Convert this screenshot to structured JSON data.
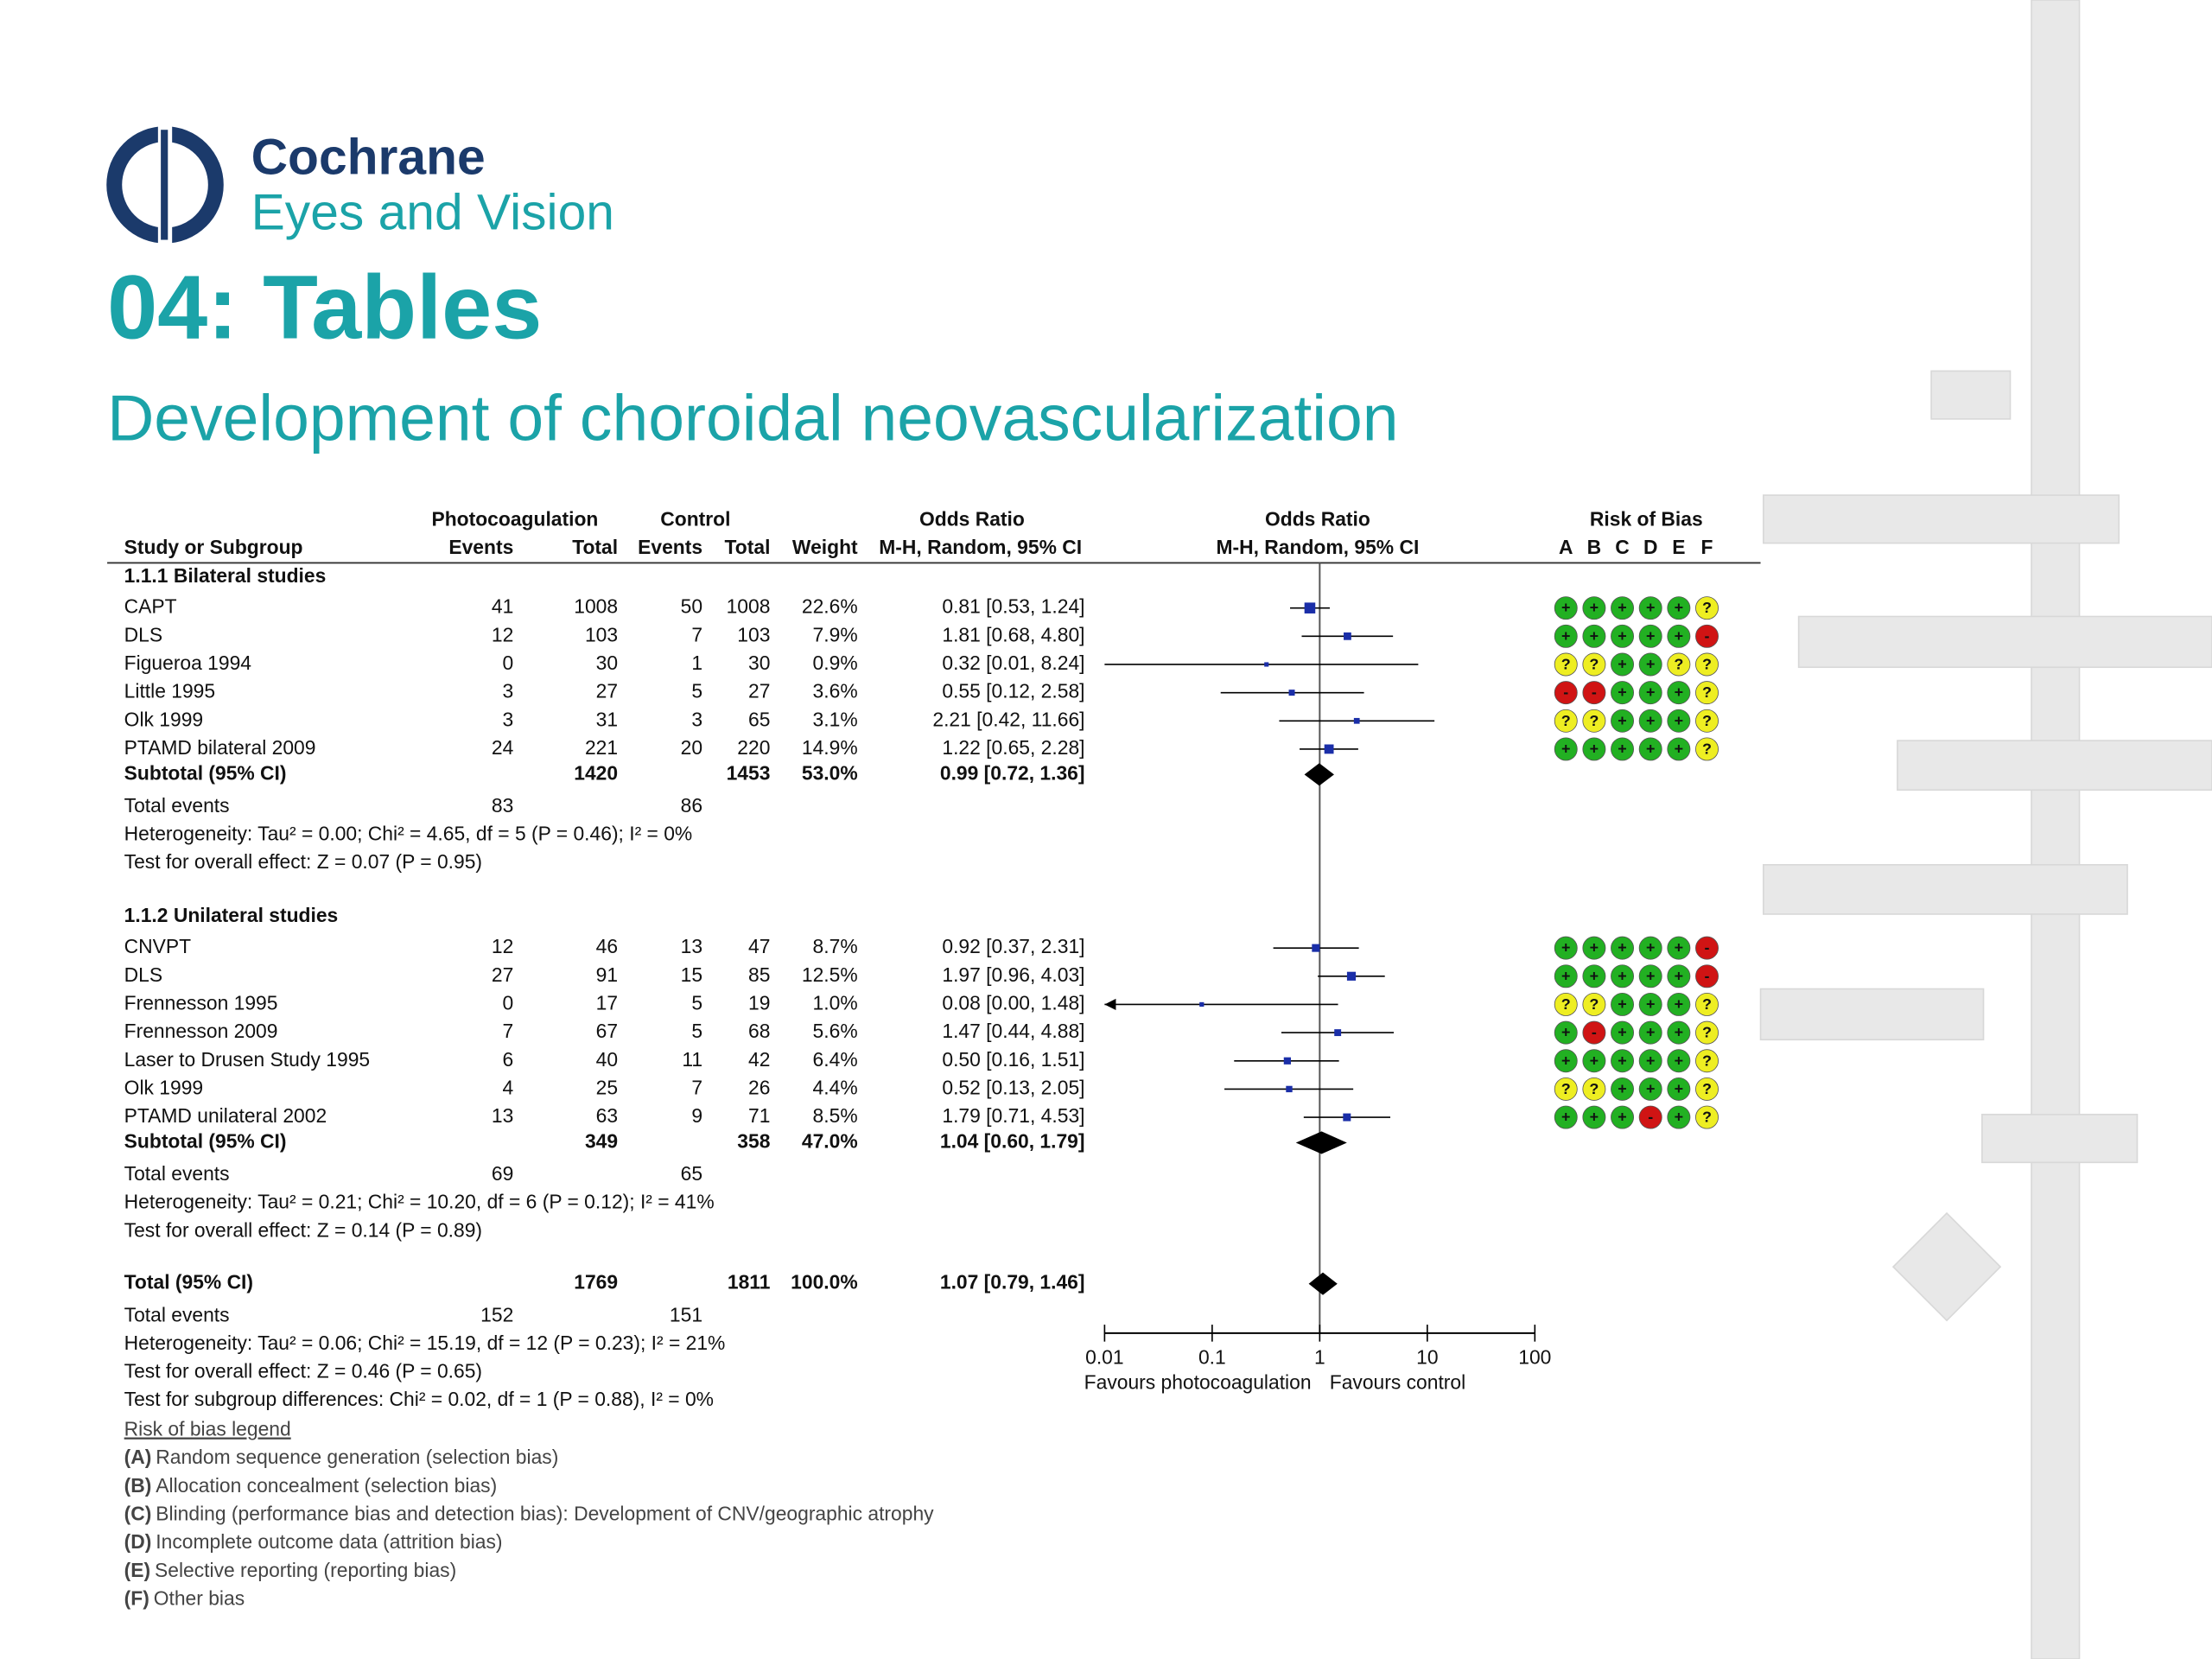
{
  "logo": {
    "name": "Cochrane",
    "unit": "Eyes and Vision"
  },
  "title": "04: Tables",
  "subtitle": "Development of choroidal neovascularization",
  "forest": {
    "group_headers": {
      "experimental": "Photocoagulation",
      "control": "Control",
      "or_text": "Odds Ratio",
      "or_plot": "Odds Ratio",
      "bias": "Risk of Bias"
    },
    "headers": {
      "name": "Study or Subgroup",
      "events_1": "Events",
      "total_1": "Total",
      "events_2": "Events",
      "total_2": "Total",
      "weight": "Weight",
      "or_ci": "M-H, Random, 95% CI",
      "plot": "M-H, Random, 95% CI"
    },
    "bias_domains": [
      "A",
      "B",
      "C",
      "D",
      "E",
      "F"
    ],
    "groups": [
      {
        "label": "1.1.1 Bilateral studies",
        "studies": [
          {
            "name": "CAPT",
            "events_1": 41,
            "total_1": 1008,
            "events_2": 50,
            "total_2": 1008,
            "weight": "22.6%",
            "weight_pct": 22.6,
            "or_ci": "0.81 [0.53, 1.24]",
            "or": 0.81,
            "ci": [
              0.53,
              1.24
            ],
            "bias": [
              "+",
              "+",
              "+",
              "+",
              "+",
              "?"
            ]
          },
          {
            "name": "DLS",
            "events_1": 12,
            "total_1": 103,
            "events_2": 7,
            "total_2": 103,
            "weight": "7.9%",
            "weight_pct": 7.9,
            "or_ci": "1.81 [0.68, 4.80]",
            "or": 1.81,
            "ci": [
              0.68,
              4.8
            ],
            "bias": [
              "+",
              "+",
              "+",
              "+",
              "+",
              "-"
            ]
          },
          {
            "name": "Figueroa 1994",
            "events_1": 0,
            "total_1": 30,
            "events_2": 1,
            "total_2": 30,
            "weight": "0.9%",
            "weight_pct": 0.9,
            "or_ci": "0.32 [0.01, 8.24]",
            "or": 0.32,
            "ci": [
              0.01,
              8.24
            ],
            "bias": [
              "?",
              "?",
              "+",
              "+",
              "?",
              "?"
            ]
          },
          {
            "name": "Little 1995",
            "events_1": 3,
            "total_1": 27,
            "events_2": 5,
            "total_2": 27,
            "weight": "3.6%",
            "weight_pct": 3.6,
            "or_ci": "0.55 [0.12, 2.58]",
            "or": 0.55,
            "ci": [
              0.12,
              2.58
            ],
            "bias": [
              "-",
              "-",
              "+",
              "+",
              "+",
              "?"
            ]
          },
          {
            "name": "Olk 1999",
            "events_1": 3,
            "total_1": 31,
            "events_2": 3,
            "total_2": 65,
            "weight": "3.1%",
            "weight_pct": 3.1,
            "or_ci": "2.21 [0.42, 11.66]",
            "or": 2.21,
            "ci": [
              0.42,
              11.66
            ],
            "bias": [
              "?",
              "?",
              "+",
              "+",
              "+",
              "?"
            ]
          },
          {
            "name": "PTAMD bilateral 2009",
            "events_1": 24,
            "total_1": 221,
            "events_2": 20,
            "total_2": 220,
            "weight": "14.9%",
            "weight_pct": 14.9,
            "or_ci": "1.22 [0.65, 2.28]",
            "or": 1.22,
            "ci": [
              0.65,
              2.28
            ],
            "bias": [
              "+",
              "+",
              "+",
              "+",
              "+",
              "?"
            ]
          }
        ],
        "subtotal": {
          "name": "Subtotal (95% CI)",
          "total_1": 1420,
          "total_2": 1453,
          "weight": "53.0%",
          "or_ci": "0.99 [0.72, 1.36]",
          "or": 0.99,
          "ci": [
            0.72,
            1.36
          ]
        },
        "total_events": {
          "name": "Total events",
          "events_1": 83,
          "events_2": 86
        },
        "heterogeneity": "Heterogeneity: Tau² = 0.00; Chi² = 4.65, df = 5 (P = 0.46); I² = 0%",
        "overall_effect": "Test for overall effect: Z = 0.07 (P = 0.95)"
      },
      {
        "label": "1.1.2 Unilateral studies",
        "studies": [
          {
            "name": "CNVPT",
            "events_1": 12,
            "total_1": 46,
            "events_2": 13,
            "total_2": 47,
            "weight": "8.7%",
            "weight_pct": 8.7,
            "or_ci": "0.92 [0.37, 2.31]",
            "or": 0.92,
            "ci": [
              0.37,
              2.31
            ],
            "bias": [
              "+",
              "+",
              "+",
              "+",
              "+",
              "-"
            ]
          },
          {
            "name": "DLS",
            "events_1": 27,
            "total_1": 91,
            "events_2": 15,
            "total_2": 85,
            "weight": "12.5%",
            "weight_pct": 12.5,
            "or_ci": "1.97 [0.96, 4.03]",
            "or": 1.97,
            "ci": [
              0.96,
              4.03
            ],
            "bias": [
              "+",
              "+",
              "+",
              "+",
              "+",
              "-"
            ]
          },
          {
            "name": "Frennesson 1995",
            "events_1": 0,
            "total_1": 17,
            "events_2": 5,
            "total_2": 19,
            "weight": "1.0%",
            "weight_pct": 1.0,
            "or_ci": "0.08 [0.00, 1.48]",
            "or": 0.08,
            "ci": [
              0.0,
              1.48
            ],
            "bias": [
              "?",
              "?",
              "+",
              "+",
              "+",
              "?"
            ]
          },
          {
            "name": "Frennesson 2009",
            "events_1": 7,
            "total_1": 67,
            "events_2": 5,
            "total_2": 68,
            "weight": "5.6%",
            "weight_pct": 5.6,
            "or_ci": "1.47 [0.44, 4.88]",
            "or": 1.47,
            "ci": [
              0.44,
              4.88
            ],
            "bias": [
              "+",
              "-",
              "+",
              "+",
              "+",
              "?"
            ]
          },
          {
            "name": "Laser to Drusen Study 1995",
            "events_1": 6,
            "total_1": 40,
            "events_2": 11,
            "total_2": 42,
            "weight": "6.4%",
            "weight_pct": 6.4,
            "or_ci": "0.50 [0.16, 1.51]",
            "or": 0.5,
            "ci": [
              0.16,
              1.51
            ],
            "bias": [
              "+",
              "+",
              "+",
              "+",
              "+",
              "?"
            ]
          },
          {
            "name": "Olk 1999",
            "events_1": 4,
            "total_1": 25,
            "events_2": 7,
            "total_2": 26,
            "weight": "4.4%",
            "weight_pct": 4.4,
            "or_ci": "0.52 [0.13, 2.05]",
            "or": 0.52,
            "ci": [
              0.13,
              2.05
            ],
            "bias": [
              "?",
              "?",
              "+",
              "+",
              "+",
              "?"
            ]
          },
          {
            "name": "PTAMD unilateral 2002",
            "events_1": 13,
            "total_1": 63,
            "events_2": 9,
            "total_2": 71,
            "weight": "8.5%",
            "weight_pct": 8.5,
            "or_ci": "1.79 [0.71, 4.53]",
            "or": 1.79,
            "ci": [
              0.71,
              4.53
            ],
            "bias": [
              "+",
              "+",
              "+",
              "-",
              "+",
              "?"
            ]
          }
        ],
        "subtotal": {
          "name": "Subtotal (95% CI)",
          "total_1": 349,
          "total_2": 358,
          "weight": "47.0%",
          "or_ci": "1.04 [0.60, 1.79]",
          "or": 1.04,
          "ci": [
            0.6,
            1.79
          ]
        },
        "total_events": {
          "name": "Total events",
          "events_1": 69,
          "events_2": 65
        },
        "heterogeneity": "Heterogeneity: Tau² = 0.21; Chi² = 10.20, df = 6 (P = 0.12); I² = 41%",
        "overall_effect": "Test for overall effect: Z = 0.14 (P = 0.89)"
      }
    ],
    "overall": {
      "total": {
        "name": "Total (95% CI)",
        "total_1": 1769,
        "total_2": 1811,
        "weight": "100.0%",
        "or_ci": "1.07 [0.79, 1.46]",
        "or": 1.07,
        "ci": [
          0.79,
          1.46
        ]
      },
      "total_events": {
        "name": "Total events",
        "events_1": 152,
        "events_2": 151
      },
      "heterogeneity": "Heterogeneity: Tau² = 0.06; Chi² = 15.19, df = 12 (P = 0.23); I² = 21%",
      "overall_effect": "Test for overall effect: Z = 0.46 (P = 0.65)",
      "subgroup_differences": "Test for subgroup differences: Chi² = 0.02, df = 1 (P = 0.88), I² = 0%"
    },
    "axis": {
      "log": true,
      "xlim": [
        0.01,
        100
      ],
      "xticks": [
        0.01,
        0.1,
        1,
        10,
        100
      ],
      "left_label": "Favours photocoagulation",
      "right_label": "Favours control"
    },
    "legend": {
      "title": "Risk of bias legend",
      "items": [
        {
          "key": "(A)",
          "text": "Random sequence generation (selection bias)"
        },
        {
          "key": "(B)",
          "text": "Allocation concealment (selection bias)"
        },
        {
          "key": "(C)",
          "text": "Blinding (performance bias and detection bias): Development of CNV/geographic atrophy"
        },
        {
          "key": "(D)",
          "text": "Incomplete outcome data (attrition bias)"
        },
        {
          "key": "(E)",
          "text": "Selective reporting (reporting bias)"
        },
        {
          "key": "(F)",
          "text": "Other bias"
        }
      ]
    }
  }
}
